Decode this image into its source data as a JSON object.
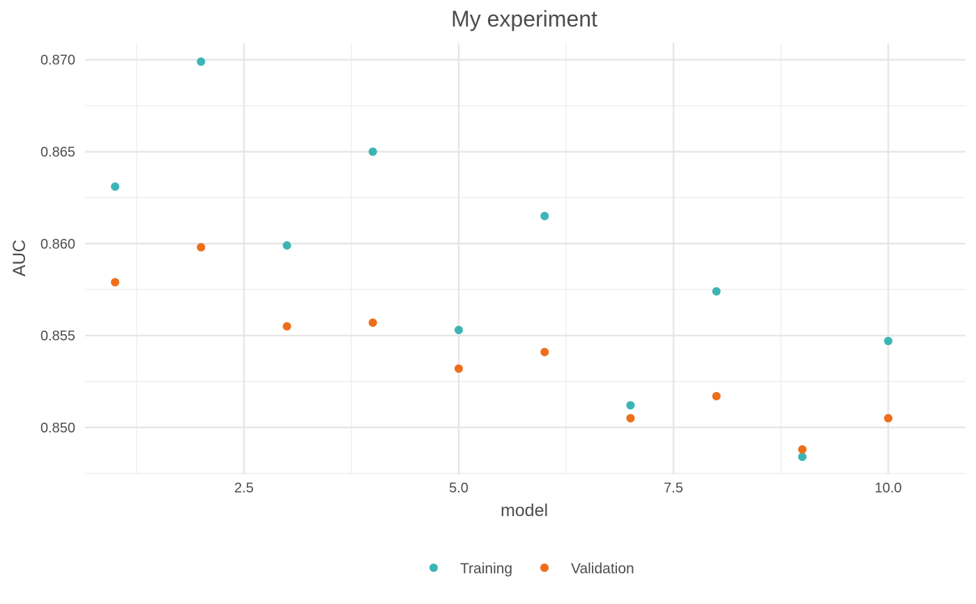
{
  "chart_data": {
    "type": "scatter",
    "title": "My experiment",
    "xlabel": "model",
    "ylabel": "AUC",
    "xlim": [
      0.65,
      10.9
    ],
    "ylim": [
      0.84745,
      0.8709
    ],
    "x_ticks": [
      2.5,
      5.0,
      7.5,
      10.0
    ],
    "x_tick_labels": [
      "2.5",
      "5.0",
      "7.5",
      "10.0"
    ],
    "x_minor_ticks": [
      1.25,
      3.75,
      6.25,
      8.75
    ],
    "y_ticks": [
      0.85,
      0.855,
      0.86,
      0.865,
      0.87
    ],
    "y_tick_labels": [
      "0.850",
      "0.855",
      "0.860",
      "0.865",
      "0.870"
    ],
    "y_minor_ticks": [
      0.8475,
      0.8525,
      0.8575,
      0.8625,
      0.8675
    ],
    "grid": true,
    "legend_position": "bottom",
    "series": [
      {
        "name": "Training",
        "color": "#3db5b5",
        "x": [
          1,
          2,
          3,
          4,
          5,
          6,
          7,
          8,
          9,
          10
        ],
        "y": [
          0.8631,
          0.8699,
          0.8599,
          0.865,
          0.8553,
          0.8615,
          0.8512,
          0.8574,
          0.8484,
          0.8547
        ]
      },
      {
        "name": "Validation",
        "color": "#ef6e1b",
        "x": [
          1,
          2,
          3,
          4,
          5,
          6,
          7,
          8,
          9,
          10
        ],
        "y": [
          0.8579,
          0.8598,
          0.8555,
          0.8557,
          0.8532,
          0.8541,
          0.8505,
          0.8517,
          0.8488,
          0.8505
        ]
      }
    ]
  }
}
